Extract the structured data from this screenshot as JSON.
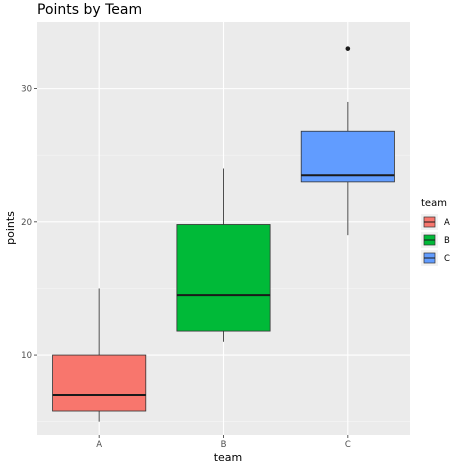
{
  "chart_data": {
    "type": "boxplot",
    "title": "Points by Team",
    "xlabel": "team",
    "ylabel": "points",
    "categories": [
      "A",
      "B",
      "C"
    ],
    "ylim": [
      4,
      35
    ],
    "yticks": [
      10,
      20,
      30
    ],
    "grid": true,
    "legend": {
      "title": "team",
      "placement": "right",
      "entries": [
        "A",
        "B",
        "C"
      ]
    },
    "colors": [
      "#f8766d",
      "#00ba38",
      "#619cff"
    ],
    "boxes": [
      {
        "category": "A",
        "whisker_low": 5,
        "q1": 5.8,
        "median": 7,
        "q3": 10,
        "whisker_high": 15,
        "outliers": []
      },
      {
        "category": "B",
        "whisker_low": 11,
        "q1": 11.8,
        "median": 14.5,
        "q3": 19.8,
        "whisker_high": 24,
        "outliers": []
      },
      {
        "category": "C",
        "whisker_low": 19,
        "q1": 23,
        "median": 23.5,
        "q3": 26.8,
        "whisker_high": 29,
        "outliers": [
          33
        ]
      }
    ]
  }
}
